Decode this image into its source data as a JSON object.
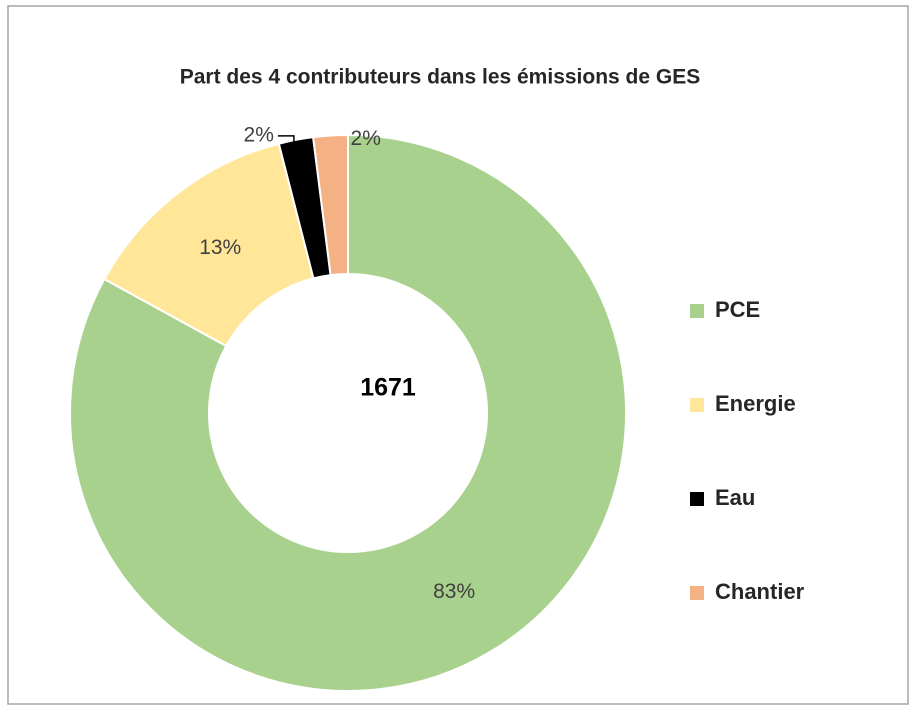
{
  "chart_data": {
    "type": "donut",
    "title": "Part des 4 contributeurs dans les émissions de GES",
    "center_text": "1671",
    "categories": [
      "PCE",
      "Energie",
      "Eau",
      "Chantier"
    ],
    "values": [
      83,
      13,
      2,
      2
    ],
    "value_labels": [
      "83%",
      "13%",
      "2%",
      "2%"
    ],
    "colors": [
      "#a9d18e",
      "#ffe699",
      "#000000",
      "#f4b183"
    ],
    "legend": "right"
  }
}
